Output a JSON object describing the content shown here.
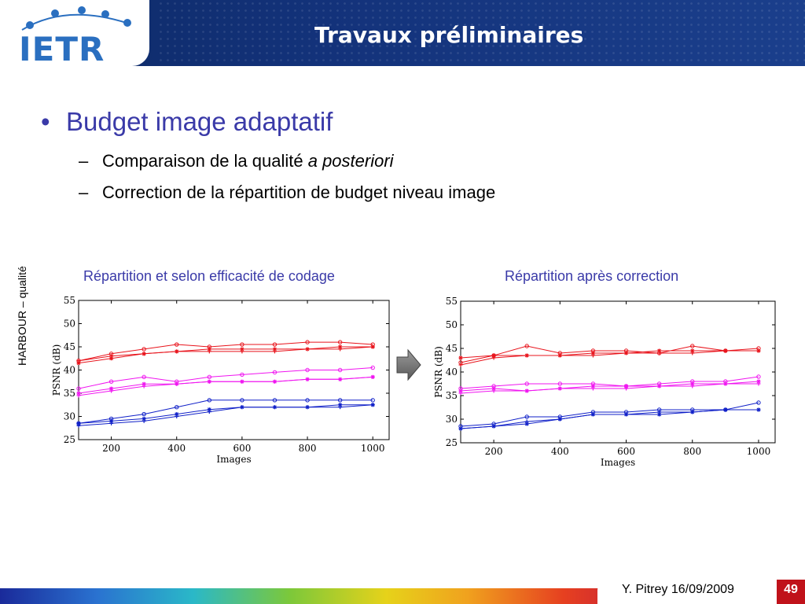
{
  "header": {
    "logo_text": "IETR",
    "title": "Travaux préliminaires"
  },
  "content": {
    "bullet": "Budget image adaptatif",
    "sub1_text": "Comparaison de la qualité ",
    "sub1_italic": "a posteriori",
    "sub2": "Correction de la répartition de budget niveau image",
    "row_label": "HARBOUR – qualité"
  },
  "footer": {
    "author_date": "Y. Pitrey 16/09/2009",
    "page": "49"
  },
  "colors": {
    "red": "#e8141c",
    "magenta": "#f014f0",
    "blue": "#1020c8",
    "title_blue": "#3a3aa8"
  },
  "chart_data": [
    {
      "type": "line",
      "title": "Répartition et selon efficacité de codage",
      "xlabel": "Images",
      "ylabel": "PSNR (dB)",
      "xlim": [
        100,
        1050
      ],
      "ylim": [
        25,
        55
      ],
      "xticks": [
        200,
        400,
        600,
        800,
        1000
      ],
      "yticks": [
        25,
        30,
        35,
        40,
        45,
        50,
        55
      ],
      "series": [
        {
          "color": "#e8141c",
          "marker": "o",
          "x": [
            100,
            200,
            300,
            400,
            500,
            600,
            700,
            800,
            900,
            1000
          ],
          "y": [
            42.0,
            43.5,
            44.5,
            45.5,
            45.0,
            45.5,
            45.5,
            46.0,
            46.0,
            45.5
          ]
        },
        {
          "color": "#e8141c",
          "marker": "*",
          "x": [
            100,
            200,
            300,
            400,
            500,
            600,
            700,
            800,
            900,
            1000
          ],
          "y": [
            41.5,
            42.5,
            43.5,
            44.0,
            44.5,
            44.5,
            44.5,
            44.5,
            45.0,
            45.0
          ]
        },
        {
          "color": "#e8141c",
          "marker": "+",
          "x": [
            100,
            200,
            300,
            400,
            500,
            600,
            700,
            800,
            900,
            1000
          ],
          "y": [
            42.0,
            43.0,
            43.5,
            44.0,
            44.0,
            44.0,
            44.0,
            44.5,
            44.5,
            45.0
          ]
        },
        {
          "color": "#f014f0",
          "marker": "o",
          "x": [
            100,
            200,
            300,
            400,
            500,
            600,
            700,
            800,
            900,
            1000
          ],
          "y": [
            36.0,
            37.5,
            38.5,
            37.5,
            38.5,
            39.0,
            39.5,
            40.0,
            40.0,
            40.5
          ]
        },
        {
          "color": "#f014f0",
          "marker": "*",
          "x": [
            100,
            200,
            300,
            400,
            500,
            600,
            700,
            800,
            900,
            1000
          ],
          "y": [
            35.0,
            36.0,
            37.0,
            37.0,
            37.5,
            37.5,
            37.5,
            38.0,
            38.0,
            38.5
          ]
        },
        {
          "color": "#f014f0",
          "marker": "+",
          "x": [
            100,
            200,
            300,
            400,
            500,
            600,
            700,
            800,
            900,
            1000
          ],
          "y": [
            34.5,
            35.5,
            36.5,
            37.0,
            37.5,
            37.5,
            37.5,
            38.0,
            38.0,
            38.5
          ]
        },
        {
          "color": "#1020c8",
          "marker": "o",
          "x": [
            100,
            200,
            300,
            400,
            500,
            600,
            700,
            800,
            900,
            1000
          ],
          "y": [
            28.5,
            29.5,
            30.5,
            32.0,
            33.5,
            33.5,
            33.5,
            33.5,
            33.5,
            33.5
          ]
        },
        {
          "color": "#1020c8",
          "marker": "*",
          "x": [
            100,
            200,
            300,
            400,
            500,
            600,
            700,
            800,
            900,
            1000
          ],
          "y": [
            28.5,
            29.0,
            29.5,
            30.5,
            31.5,
            32.0,
            32.0,
            32.0,
            32.5,
            32.5
          ]
        },
        {
          "color": "#1020c8",
          "marker": "+",
          "x": [
            100,
            200,
            300,
            400,
            500,
            600,
            700,
            800,
            900,
            1000
          ],
          "y": [
            28.0,
            28.5,
            29.0,
            30.0,
            31.0,
            32.0,
            32.0,
            32.0,
            32.0,
            32.5
          ]
        }
      ]
    },
    {
      "type": "line",
      "title": "Répartition après correction",
      "xlabel": "Images",
      "ylabel": "PSNR (dB)",
      "xlim": [
        100,
        1050
      ],
      "ylim": [
        25,
        55
      ],
      "xticks": [
        200,
        400,
        600,
        800,
        1000
      ],
      "yticks": [
        25,
        30,
        35,
        40,
        45,
        50,
        55
      ],
      "series": [
        {
          "color": "#e8141c",
          "marker": "o",
          "x": [
            100,
            200,
            300,
            400,
            500,
            600,
            700,
            800,
            900,
            1000
          ],
          "y": [
            42.0,
            43.5,
            45.5,
            44.0,
            44.5,
            44.5,
            44.0,
            45.5,
            44.5,
            45.0
          ]
        },
        {
          "color": "#e8141c",
          "marker": "*",
          "x": [
            100,
            200,
            300,
            400,
            500,
            600,
            700,
            800,
            900,
            1000
          ],
          "y": [
            43.0,
            43.5,
            43.5,
            43.5,
            44.0,
            44.0,
            44.5,
            44.5,
            44.5,
            44.5
          ]
        },
        {
          "color": "#e8141c",
          "marker": "+",
          "x": [
            100,
            200,
            300,
            400,
            500,
            600,
            700,
            800,
            900,
            1000
          ],
          "y": [
            41.5,
            43.0,
            43.5,
            43.5,
            43.5,
            44.0,
            44.0,
            44.0,
            44.5,
            44.5
          ]
        },
        {
          "color": "#f014f0",
          "marker": "o",
          "x": [
            100,
            200,
            300,
            400,
            500,
            600,
            700,
            800,
            900,
            1000
          ],
          "y": [
            36.5,
            37.0,
            37.5,
            37.5,
            37.5,
            37.0,
            37.5,
            38.0,
            38.0,
            39.0
          ]
        },
        {
          "color": "#f014f0",
          "marker": "*",
          "x": [
            100,
            200,
            300,
            400,
            500,
            600,
            700,
            800,
            900,
            1000
          ],
          "y": [
            36.0,
            36.5,
            36.0,
            36.5,
            37.0,
            37.0,
            37.0,
            37.5,
            37.5,
            38.0
          ]
        },
        {
          "color": "#f014f0",
          "marker": "+",
          "x": [
            100,
            200,
            300,
            400,
            500,
            600,
            700,
            800,
            900,
            1000
          ],
          "y": [
            35.5,
            36.0,
            36.0,
            36.5,
            36.5,
            36.5,
            37.0,
            37.0,
            37.5,
            37.5
          ]
        },
        {
          "color": "#1020c8",
          "marker": "o",
          "x": [
            100,
            200,
            300,
            400,
            500,
            600,
            700,
            800,
            900,
            1000
          ],
          "y": [
            28.5,
            29.0,
            30.5,
            30.5,
            31.5,
            31.5,
            32.0,
            32.0,
            32.0,
            33.5
          ]
        },
        {
          "color": "#1020c8",
          "marker": "*",
          "x": [
            100,
            200,
            300,
            400,
            500,
            600,
            700,
            800,
            900,
            1000
          ],
          "y": [
            28.0,
            28.5,
            29.0,
            30.0,
            31.0,
            31.0,
            31.0,
            31.5,
            32.0,
            32.0
          ]
        },
        {
          "color": "#1020c8",
          "marker": "+",
          "x": [
            100,
            200,
            300,
            400,
            500,
            600,
            700,
            800,
            900,
            1000
          ],
          "y": [
            28.0,
            28.5,
            29.5,
            30.0,
            31.0,
            31.0,
            31.5,
            31.5,
            32.0,
            32.0
          ]
        }
      ]
    }
  ]
}
